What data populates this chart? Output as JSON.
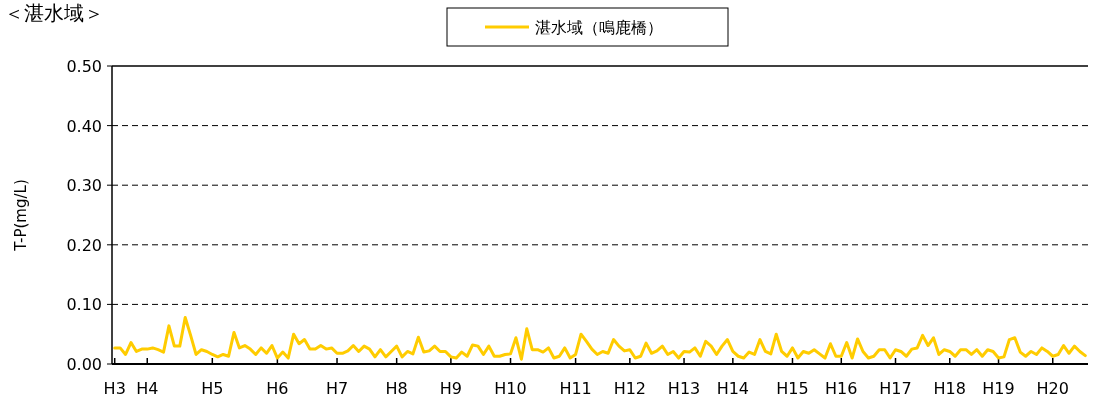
{
  "chart_data": {
    "type": "line",
    "title": "＜湛水域＞",
    "ylabel": "T-P(mg/L)",
    "categories": [
      "H3",
      null,
      null,
      null,
      null,
      null,
      "H4",
      null,
      null,
      null,
      null,
      null,
      null,
      null,
      null,
      null,
      null,
      null,
      "H5",
      null,
      null,
      null,
      null,
      null,
      null,
      null,
      null,
      null,
      null,
      null,
      "H6",
      null,
      null,
      null,
      null,
      null,
      null,
      null,
      null,
      null,
      null,
      "H7",
      null,
      null,
      null,
      null,
      null,
      null,
      null,
      null,
      null,
      null,
      "H8",
      null,
      null,
      null,
      null,
      null,
      null,
      null,
      null,
      null,
      "H9",
      null,
      null,
      null,
      null,
      null,
      null,
      null,
      null,
      null,
      null,
      "H10",
      null,
      null,
      null,
      null,
      null,
      null,
      null,
      null,
      null,
      null,
      null,
      "H11",
      null,
      null,
      null,
      null,
      null,
      null,
      null,
      null,
      null,
      "H12",
      null,
      null,
      null,
      null,
      null,
      null,
      null,
      null,
      null,
      "H13",
      null,
      null,
      null,
      null,
      null,
      null,
      null,
      null,
      "H14",
      null,
      null,
      null,
      null,
      null,
      null,
      null,
      null,
      null,
      null,
      "H15",
      null,
      null,
      null,
      null,
      null,
      null,
      null,
      null,
      "H16",
      null,
      null,
      null,
      null,
      null,
      null,
      null,
      null,
      null,
      "H17",
      null,
      null,
      null,
      null,
      null,
      null,
      null,
      null,
      null,
      "H18",
      null,
      null,
      null,
      null,
      null,
      null,
      null,
      null,
      "H19",
      null,
      null,
      null,
      null,
      null,
      null,
      null,
      null,
      null,
      "H20",
      null,
      null,
      null,
      null,
      null,
      null
    ],
    "series": [
      {
        "name": "湛水域（鳴鹿橋）",
        "color": "#ffcc00",
        "values": [
          0.027,
          0.027,
          0.016,
          0.036,
          0.021,
          0.025,
          0.025,
          0.027,
          0.024,
          0.02,
          0.064,
          0.03,
          0.03,
          0.078,
          0.048,
          0.016,
          0.024,
          0.021,
          0.016,
          0.012,
          0.016,
          0.013,
          0.053,
          0.027,
          0.031,
          0.025,
          0.016,
          0.027,
          0.018,
          0.031,
          0.01,
          0.02,
          0.01,
          0.05,
          0.034,
          0.041,
          0.025,
          0.025,
          0.031,
          0.025,
          0.027,
          0.018,
          0.018,
          0.022,
          0.031,
          0.021,
          0.03,
          0.025,
          0.012,
          0.024,
          0.012,
          0.021,
          0.03,
          0.012,
          0.021,
          0.017,
          0.045,
          0.02,
          0.022,
          0.03,
          0.021,
          0.021,
          0.012,
          0.01,
          0.02,
          0.013,
          0.032,
          0.03,
          0.016,
          0.03,
          0.013,
          0.013,
          0.016,
          0.017,
          0.044,
          0.008,
          0.059,
          0.024,
          0.024,
          0.02,
          0.027,
          0.01,
          0.013,
          0.027,
          0.01,
          0.016,
          0.05,
          0.038,
          0.025,
          0.016,
          0.021,
          0.018,
          0.041,
          0.03,
          0.022,
          0.024,
          0.01,
          0.013,
          0.035,
          0.018,
          0.022,
          0.03,
          0.016,
          0.021,
          0.01,
          0.021,
          0.02,
          0.027,
          0.013,
          0.038,
          0.03,
          0.016,
          0.03,
          0.041,
          0.021,
          0.013,
          0.01,
          0.02,
          0.016,
          0.041,
          0.021,
          0.017,
          0.05,
          0.021,
          0.013,
          0.027,
          0.01,
          0.021,
          0.018,
          0.024,
          0.017,
          0.01,
          0.034,
          0.013,
          0.013,
          0.036,
          0.01,
          0.042,
          0.021,
          0.01,
          0.013,
          0.024,
          0.024,
          0.01,
          0.024,
          0.021,
          0.013,
          0.025,
          0.027,
          0.048,
          0.031,
          0.044,
          0.016,
          0.024,
          0.021,
          0.013,
          0.024,
          0.024,
          0.016,
          0.024,
          0.013,
          0.024,
          0.021,
          0.01,
          0.012,
          0.041,
          0.044,
          0.02,
          0.013,
          0.021,
          0.016,
          0.027,
          0.021,
          0.013,
          0.016,
          0.031,
          0.018,
          0.03,
          0.021,
          0.014
        ]
      }
    ],
    "ylim": [
      0,
      0.5
    ],
    "yticks": [
      {
        "value": 0,
        "label": "0.00"
      },
      {
        "value": 0.1,
        "label": "0.10"
      },
      {
        "value": 0.2,
        "label": "0.20"
      },
      {
        "value": 0.3,
        "label": "0.30"
      },
      {
        "value": 0.4,
        "label": "0.40"
      },
      {
        "value": 0.5,
        "label": "0.50"
      }
    ],
    "grid": "y",
    "legend": "top",
    "marker": "none",
    "line_style": "solid"
  }
}
